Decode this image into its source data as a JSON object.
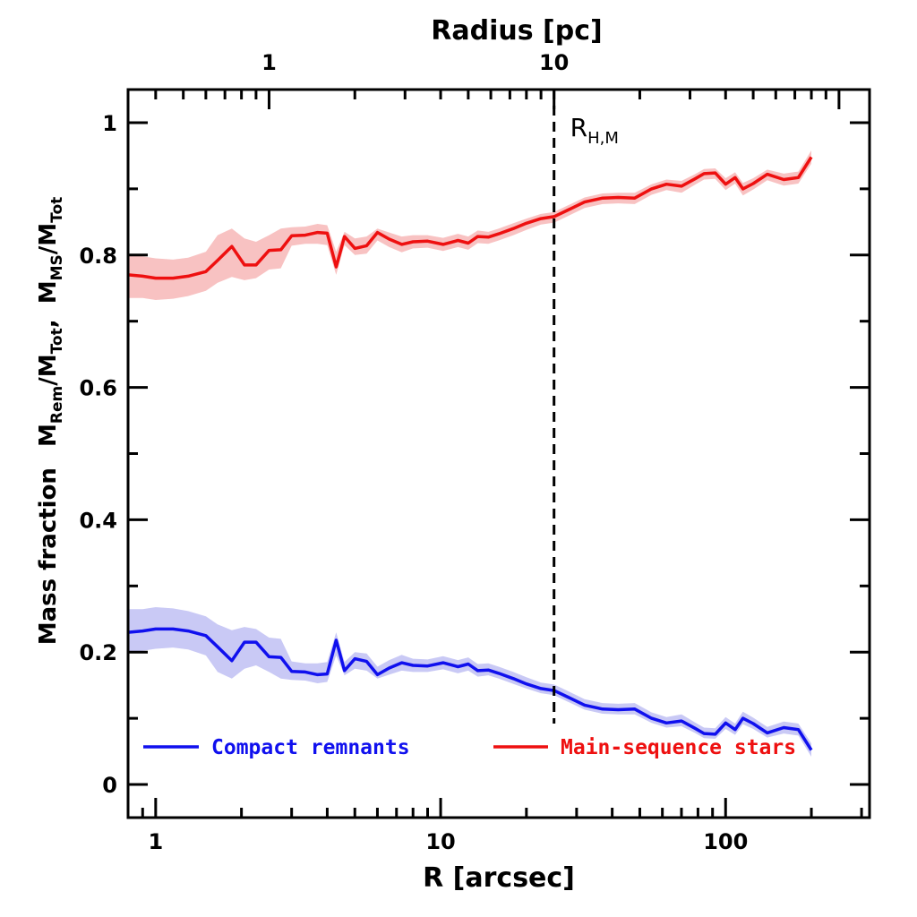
{
  "chart_data": {
    "type": "line",
    "x_scale": "log",
    "x_top_scale": "log",
    "xlim": [
      0.8,
      320
    ],
    "ylim": [
      -0.05,
      1.05
    ],
    "x_ticks": [
      1,
      10,
      100
    ],
    "x_tick_labels": [
      "1",
      "10",
      "100"
    ],
    "x_top_ticks": [
      1,
      10
    ],
    "x_top_tick_labels": [
      "1",
      "10"
    ],
    "y_ticks": [
      0,
      0.2,
      0.4,
      0.6,
      0.8,
      1
    ],
    "y_tick_labels": [
      "0",
      "0.2",
      "0.4",
      "0.6",
      "0.8",
      "1"
    ],
    "xlabel": "R [arcsec]",
    "xlabel_top": "Radius [pc]",
    "ylabel_prefix": "Mass fraction",
    "ylabel_part1_main": "M",
    "ylabel_part1_sub": "Rem",
    "ylabel_part2_main": "/M",
    "ylabel_part2_sub": "Tot",
    "ylabel_sep": ",",
    "ylabel_part3_main": "M",
    "ylabel_part3_sub": "MS",
    "ylabel_part4_main": "/M",
    "ylabel_part4_sub": "Tot",
    "annotation": {
      "x": 25,
      "label_main": "R",
      "label_sub": "H,M"
    },
    "grid": false,
    "legend_position": "bottom",
    "series": [
      {
        "name": "Compact remnants",
        "color": "#1010ee",
        "band_color": "#c9c9f5",
        "x": [
          0.8,
          0.9,
          1.0,
          1.15,
          1.3,
          1.5,
          1.65,
          1.85,
          2.05,
          2.25,
          2.5,
          2.75,
          3.0,
          3.35,
          3.7,
          4.0,
          4.3,
          4.6,
          5.0,
          5.5,
          6.0,
          6.6,
          7.3,
          8.0,
          9.0,
          10.2,
          11.5,
          12.5,
          13.5,
          14.7,
          16.0,
          18.0,
          20.0,
          22.5,
          25.0,
          28.0,
          32.0,
          37.0,
          42.0,
          48.0,
          55.0,
          62.0,
          70.0,
          78.0,
          84.0,
          92.0,
          100.0,
          108.0,
          115.0,
          125.0,
          140.0,
          160.0,
          180.0,
          200.0
        ],
        "y": [
          0.23,
          0.232,
          0.235,
          0.235,
          0.232,
          0.225,
          0.208,
          0.187,
          0.215,
          0.215,
          0.193,
          0.192,
          0.171,
          0.17,
          0.166,
          0.167,
          0.218,
          0.172,
          0.19,
          0.186,
          0.166,
          0.176,
          0.184,
          0.18,
          0.179,
          0.184,
          0.178,
          0.182,
          0.172,
          0.173,
          0.168,
          0.16,
          0.152,
          0.145,
          0.142,
          0.132,
          0.12,
          0.114,
          0.113,
          0.114,
          0.1,
          0.093,
          0.096,
          0.085,
          0.077,
          0.076,
          0.093,
          0.083,
          0.1,
          0.092,
          0.078,
          0.086,
          0.083,
          0.052
        ],
        "y_lo": [
          0.2,
          0.202,
          0.205,
          0.207,
          0.204,
          0.195,
          0.17,
          0.16,
          0.175,
          0.18,
          0.17,
          0.16,
          0.158,
          0.157,
          0.153,
          0.155,
          0.195,
          0.165,
          0.175,
          0.172,
          0.16,
          0.166,
          0.172,
          0.17,
          0.17,
          0.174,
          0.168,
          0.172,
          0.163,
          0.165,
          0.16,
          0.152,
          0.145,
          0.138,
          0.135,
          0.125,
          0.113,
          0.107,
          0.106,
          0.106,
          0.093,
          0.086,
          0.088,
          0.078,
          0.07,
          0.069,
          0.084,
          0.075,
          0.091,
          0.084,
          0.071,
          0.077,
          0.074,
          0.042
        ],
        "y_hi": [
          0.265,
          0.265,
          0.268,
          0.266,
          0.262,
          0.254,
          0.242,
          0.233,
          0.238,
          0.235,
          0.222,
          0.22,
          0.186,
          0.183,
          0.183,
          0.185,
          0.23,
          0.185,
          0.2,
          0.198,
          0.178,
          0.188,
          0.196,
          0.19,
          0.189,
          0.194,
          0.188,
          0.192,
          0.182,
          0.183,
          0.178,
          0.17,
          0.162,
          0.154,
          0.151,
          0.141,
          0.129,
          0.123,
          0.122,
          0.123,
          0.109,
          0.102,
          0.106,
          0.094,
          0.086,
          0.085,
          0.102,
          0.092,
          0.11,
          0.101,
          0.087,
          0.095,
          0.092,
          0.062
        ]
      },
      {
        "name": "Main-sequence stars",
        "color": "#ee1010",
        "band_color": "#f8c2c2",
        "x": [
          0.8,
          0.9,
          1.0,
          1.15,
          1.3,
          1.5,
          1.65,
          1.85,
          2.05,
          2.25,
          2.5,
          2.75,
          3.0,
          3.35,
          3.7,
          4.0,
          4.3,
          4.6,
          5.0,
          5.5,
          6.0,
          6.6,
          7.3,
          8.0,
          9.0,
          10.2,
          11.5,
          12.5,
          13.5,
          14.7,
          16.0,
          18.0,
          20.0,
          22.5,
          25.0,
          28.0,
          32.0,
          37.0,
          42.0,
          48.0,
          55.0,
          62.0,
          70.0,
          78.0,
          84.0,
          92.0,
          100.0,
          108.0,
          115.0,
          125.0,
          140.0,
          160.0,
          180.0,
          200.0
        ],
        "y": [
          0.77,
          0.768,
          0.765,
          0.765,
          0.768,
          0.775,
          0.792,
          0.813,
          0.785,
          0.785,
          0.807,
          0.808,
          0.829,
          0.83,
          0.834,
          0.833,
          0.782,
          0.828,
          0.81,
          0.814,
          0.834,
          0.824,
          0.816,
          0.82,
          0.821,
          0.816,
          0.822,
          0.818,
          0.828,
          0.827,
          0.832,
          0.84,
          0.848,
          0.855,
          0.858,
          0.868,
          0.88,
          0.886,
          0.887,
          0.886,
          0.9,
          0.907,
          0.904,
          0.915,
          0.923,
          0.924,
          0.907,
          0.917,
          0.9,
          0.908,
          0.922,
          0.914,
          0.917,
          0.948
        ],
        "y_lo": [
          0.735,
          0.735,
          0.732,
          0.734,
          0.738,
          0.746,
          0.758,
          0.767,
          0.762,
          0.765,
          0.778,
          0.78,
          0.814,
          0.817,
          0.817,
          0.815,
          0.77,
          0.815,
          0.8,
          0.802,
          0.822,
          0.812,
          0.804,
          0.81,
          0.811,
          0.806,
          0.812,
          0.808,
          0.818,
          0.817,
          0.822,
          0.83,
          0.838,
          0.846,
          0.849,
          0.859,
          0.871,
          0.877,
          0.878,
          0.877,
          0.891,
          0.898,
          0.894,
          0.906,
          0.914,
          0.915,
          0.898,
          0.908,
          0.89,
          0.899,
          0.913,
          0.905,
          0.908,
          0.938
        ],
        "y_hi": [
          0.8,
          0.798,
          0.795,
          0.793,
          0.796,
          0.805,
          0.83,
          0.84,
          0.825,
          0.82,
          0.83,
          0.84,
          0.842,
          0.843,
          0.847,
          0.845,
          0.805,
          0.835,
          0.825,
          0.828,
          0.84,
          0.834,
          0.828,
          0.83,
          0.83,
          0.826,
          0.832,
          0.828,
          0.837,
          0.835,
          0.84,
          0.848,
          0.855,
          0.862,
          0.865,
          0.875,
          0.887,
          0.893,
          0.894,
          0.894,
          0.907,
          0.914,
          0.912,
          0.922,
          0.93,
          0.931,
          0.916,
          0.925,
          0.909,
          0.916,
          0.929,
          0.923,
          0.926,
          0.958
        ]
      }
    ]
  }
}
